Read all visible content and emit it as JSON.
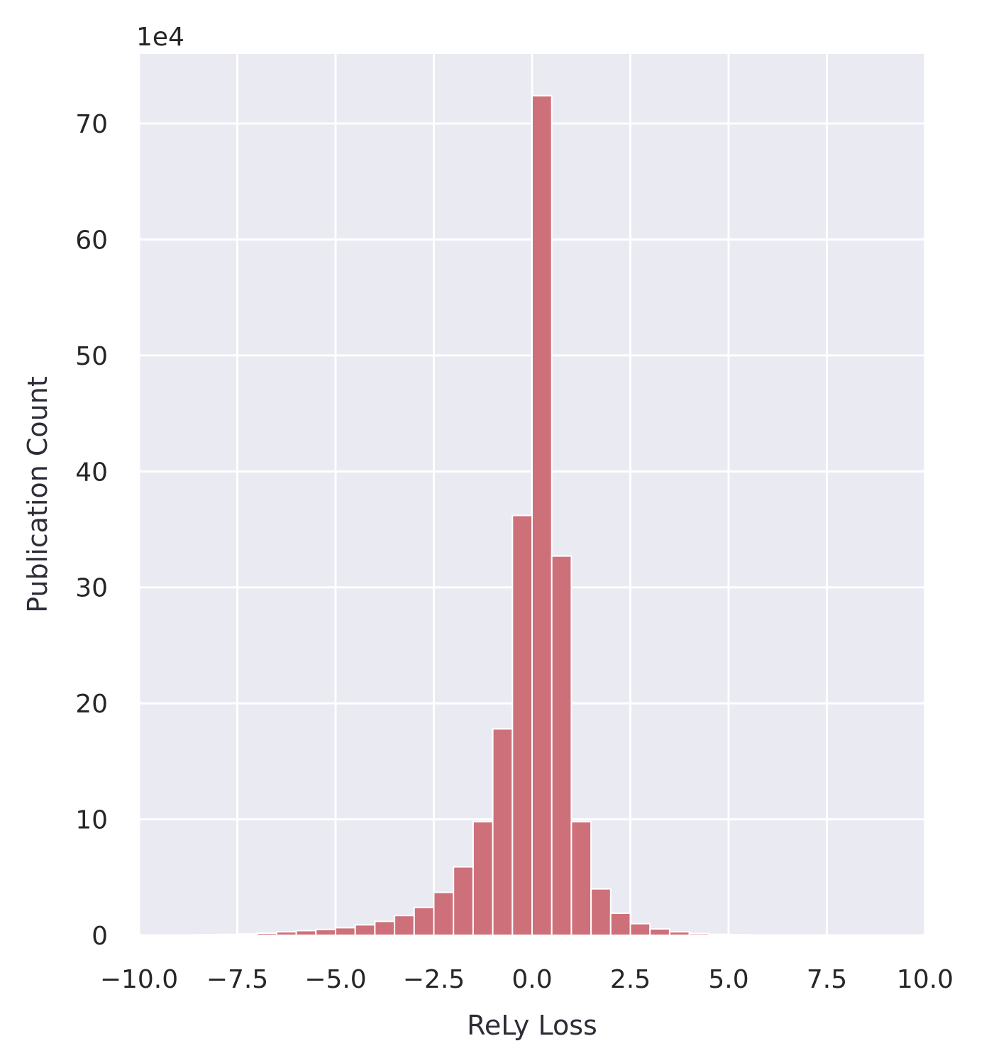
{
  "chart_data": {
    "type": "bar",
    "xlabel": "ReLy Loss",
    "ylabel": "Publication Count",
    "y_scale_label": "1e4",
    "xlim": [
      -10,
      10
    ],
    "ylim": [
      0,
      76
    ],
    "x_ticks": [
      "−10.0",
      "−7.5",
      "−5.0",
      "−2.5",
      "0.0",
      "2.5",
      "5.0",
      "7.5",
      "10.0"
    ],
    "x_tick_values": [
      -10,
      -7.5,
      -5,
      -2.5,
      0,
      2.5,
      5,
      7.5,
      10
    ],
    "y_ticks": [
      "0",
      "10",
      "20",
      "30",
      "40",
      "50",
      "60",
      "70"
    ],
    "y_tick_values": [
      0,
      10,
      20,
      30,
      40,
      50,
      60,
      70
    ],
    "grid": true,
    "colors": {
      "bar": "#cd7079",
      "bar_edge": "#ffffff",
      "background": "#eaeaf2",
      "grid": "#ffffff"
    },
    "bin_width": 0.5,
    "bin_edges_start": -8.5,
    "values": [
      0.05,
      0.08,
      0.12,
      0.18,
      0.3,
      0.4,
      0.5,
      0.65,
      0.9,
      1.2,
      1.7,
      2.4,
      3.7,
      5.9,
      9.8,
      17.8,
      36.2,
      72.4,
      32.7,
      9.8,
      4.0,
      1.9,
      1.0,
      0.55,
      0.3,
      0.15,
      0.08,
      0.05,
      0.03,
      0.02,
      0.01
    ]
  }
}
